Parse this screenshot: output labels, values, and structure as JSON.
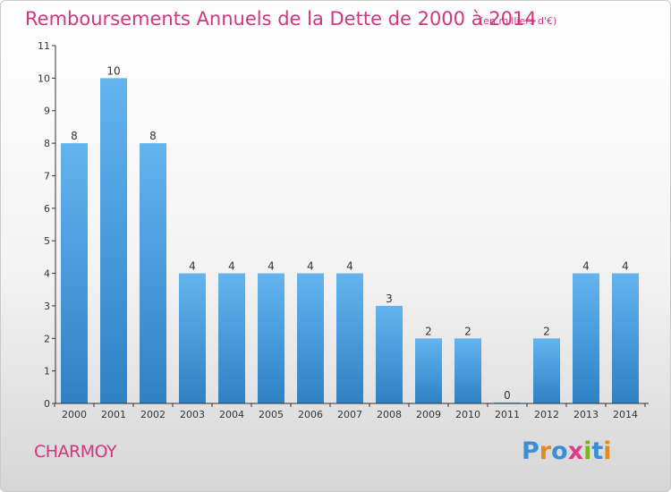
{
  "title": "Remboursements Annuels de la Dette de 2000 à 2014",
  "unit_note": "(en milliers d'€)",
  "commune": "CHARMOY",
  "logo": {
    "text": "Proxiti",
    "letters": [
      "P",
      "r",
      "o",
      "x",
      "i",
      "t",
      "i"
    ],
    "colors": [
      "#3a8fd6",
      "#e48a1c",
      "#3a8fd6",
      "#e03a8a",
      "#7ab51d",
      "#3a8fd6",
      "#e48a1c"
    ]
  },
  "colors": {
    "bar_light": "#63b4ef",
    "bar_dark": "#2f81c4",
    "accent": "#d2367d",
    "axis": "#333333"
  },
  "chart_data": {
    "type": "bar",
    "categories": [
      "2000",
      "2001",
      "2002",
      "2003",
      "2004",
      "2005",
      "2006",
      "2007",
      "2008",
      "2009",
      "2010",
      "2011",
      "2012",
      "2013",
      "2014"
    ],
    "values": [
      8,
      10,
      8,
      4,
      4,
      4,
      4,
      4,
      3,
      2,
      2,
      0,
      2,
      4,
      4
    ],
    "value_labels": [
      "8",
      "10",
      "8",
      "4",
      "4",
      "4",
      "4",
      "4",
      "3",
      "2",
      "2",
      "0",
      "2",
      "4",
      "4"
    ],
    "yticks": [
      0,
      1,
      2,
      3,
      4,
      5,
      6,
      7,
      8,
      9,
      10,
      11
    ],
    "ytick_labels": [
      "0",
      "1",
      "2",
      "3",
      "4",
      "5",
      "6",
      "7",
      "8",
      "9",
      "10",
      "11"
    ],
    "ylim": [
      0,
      11
    ],
    "title": "Remboursements Annuels de la Dette de 2000 à 2014",
    "xlabel": "",
    "ylabel": "",
    "grid": false
  }
}
